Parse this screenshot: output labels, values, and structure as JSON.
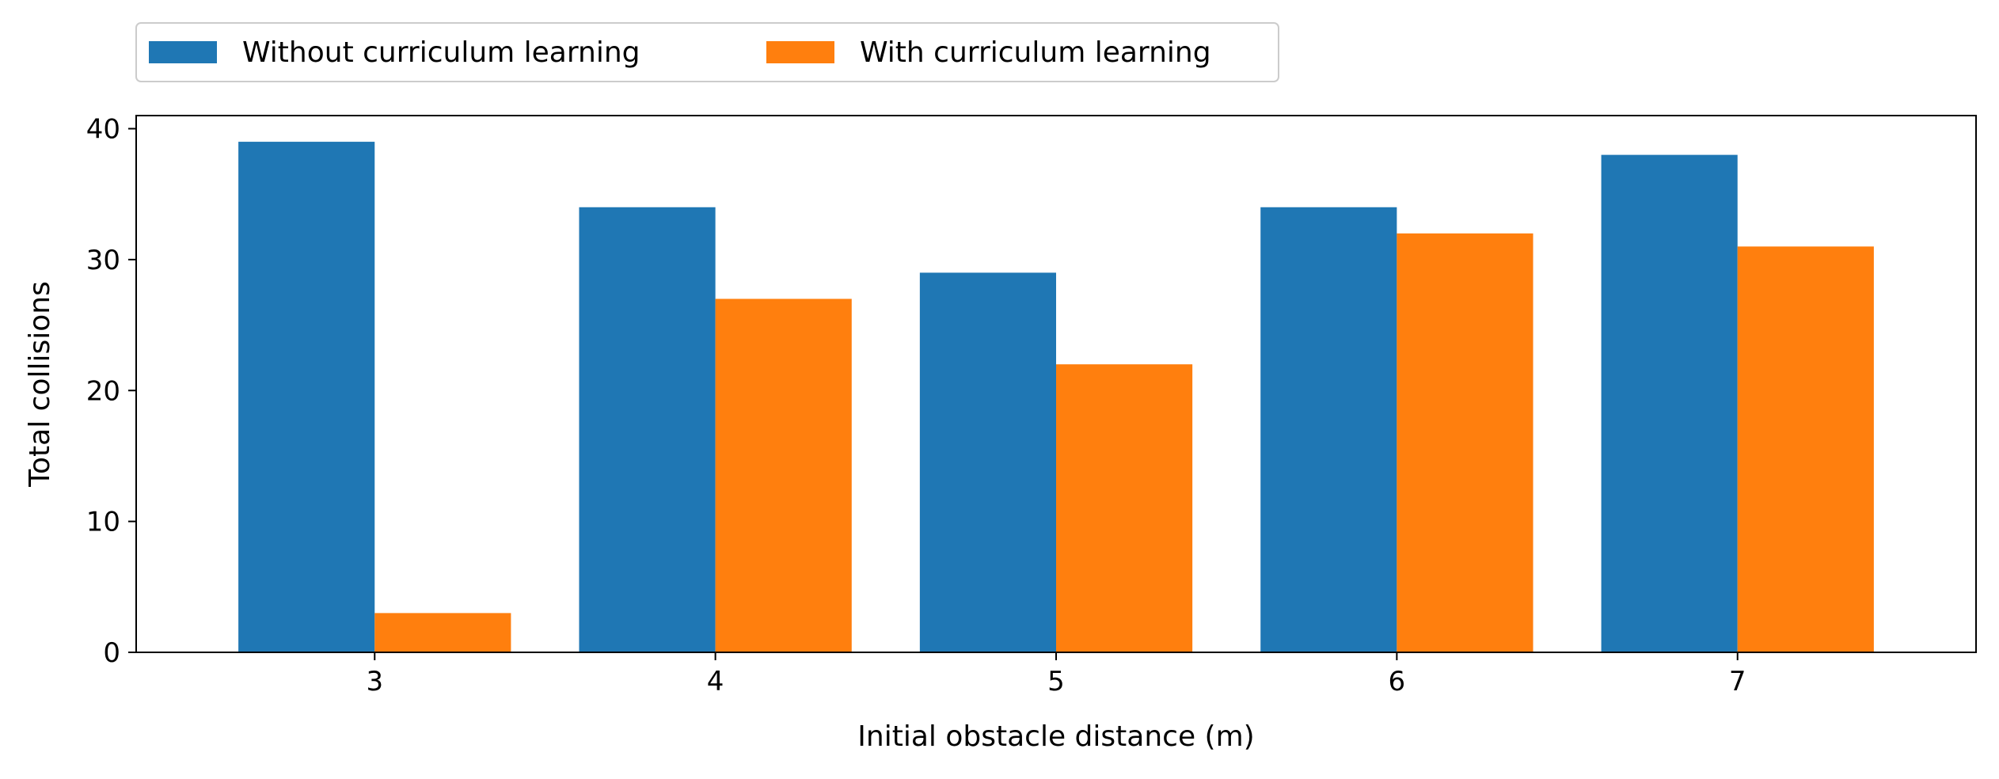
{
  "chart_data": {
    "type": "bar",
    "categories": [
      "3",
      "4",
      "5",
      "6",
      "7"
    ],
    "series": [
      {
        "name": "Without curriculum learning",
        "values": [
          39,
          34,
          29,
          34,
          38
        ],
        "color": "#1f77b4"
      },
      {
        "name": "With curriculum learning",
        "values": [
          3,
          27,
          22,
          32,
          31
        ],
        "color": "#ff7f0e"
      }
    ],
    "title": "",
    "xlabel": "Initial obstacle distance (m)",
    "ylabel": "Total collisions",
    "ylim": [
      0,
      41
    ],
    "yticks": [
      0,
      10,
      20,
      30,
      40
    ],
    "grid": false,
    "legend_position": "top-left, above plot"
  }
}
